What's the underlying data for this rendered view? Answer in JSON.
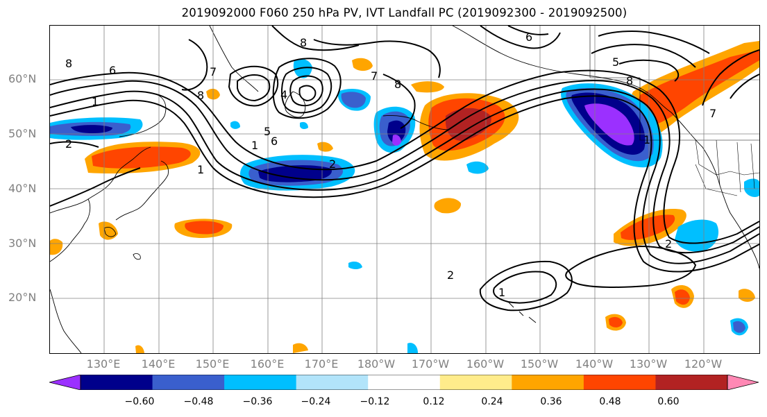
{
  "title": "2019092000 F060 250 hPa PV, IVT Landfall PC (2019092300 - 2019092500)",
  "lat_labels": [
    "60°N",
    "50°N",
    "40°N",
    "30°N",
    "20°N"
  ],
  "lon_labels": [
    "130°E",
    "140°E",
    "150°E",
    "160°E",
    "170°E",
    "180°W",
    "170°W",
    "160°W",
    "150°W",
    "140°W",
    "130°W",
    "120°W"
  ],
  "contour_labels": [
    "8",
    "6",
    "7",
    "8",
    "1",
    "4",
    "5",
    "6",
    "8",
    "7",
    "8",
    "8",
    "5",
    "6",
    "2",
    "1",
    "1",
    "2",
    "2",
    "1",
    "2",
    "1",
    "7"
  ],
  "colorbar": {
    "colors": [
      "#9b30ff",
      "#00008b",
      "#3a5fcd",
      "#00bfff",
      "#b2e4fa",
      "#ffffff",
      "#ffec8b",
      "#ffa500",
      "#ff4500",
      "#b22222",
      "#ff88b4"
    ],
    "tick_labels": [
      "−0.60",
      "−0.48",
      "−0.36",
      "−0.24",
      "−0.12",
      "0.12",
      "0.24",
      "0.36",
      "0.48",
      "0.60"
    ]
  }
}
